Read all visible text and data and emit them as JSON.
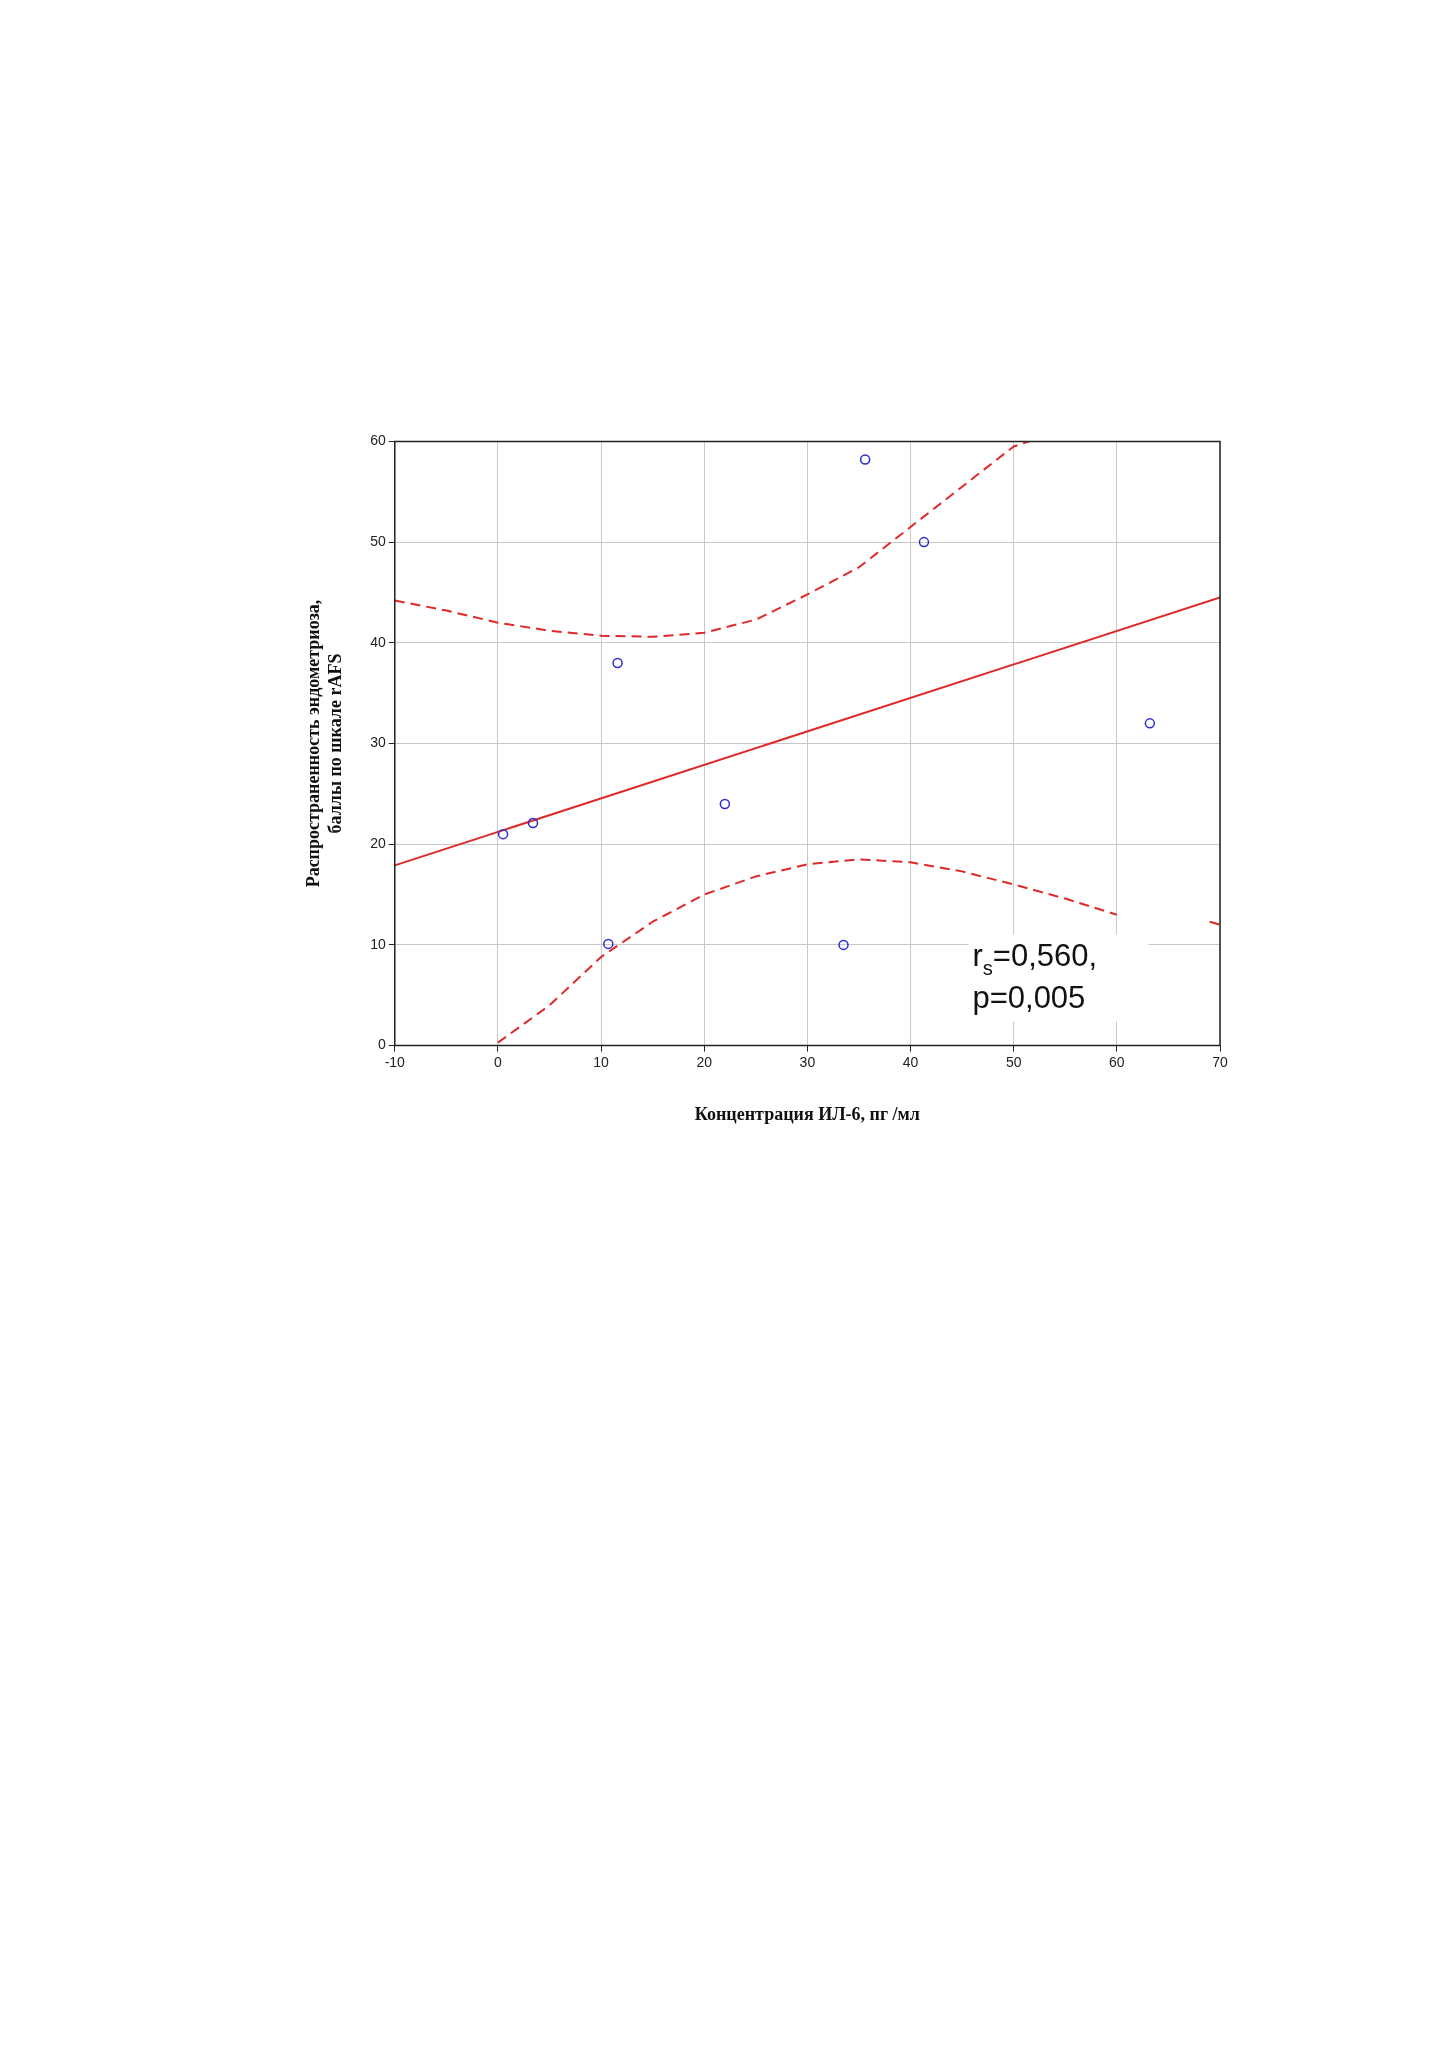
{
  "chart_data": {
    "type": "scatter",
    "xlabel": "Концентрация ИЛ-6, пг /мл",
    "ylabel": "Распространенность эндометриоза,\nбаллы по шкале rAFS",
    "xlim": [
      -10,
      70
    ],
    "xticks": [
      -10,
      0,
      10,
      20,
      30,
      40,
      50,
      60,
      70
    ],
    "ylim": [
      0,
      60
    ],
    "yticks": [
      0,
      10,
      20,
      30,
      40,
      50,
      60
    ],
    "grid": true,
    "annotations": [
      "r$_{s}$=0,560,",
      "p=0,005"
    ],
    "series": [
      {
        "type": "scatter",
        "color": "#2b2bd0",
        "marker": "circle",
        "x": [
          0.5,
          3.4,
          10.7,
          11.6,
          22,
          33.5,
          35.6,
          41.3,
          63.2
        ],
        "values": [
          21,
          22.1,
          10.1,
          38,
          24,
          10,
          58.2,
          50,
          32
        ]
      },
      {
        "type": "line",
        "color": "#e02828",
        "line_style": "solid",
        "marker": "none",
        "x": [
          -10,
          70
        ],
        "values": [
          17.9,
          44.5
        ]
      },
      {
        "type": "line",
        "color": "#e02828",
        "line_style": "dashed",
        "marker": "none",
        "x": [
          -10,
          -5,
          0,
          5,
          10,
          15,
          20,
          25,
          30,
          35,
          40,
          45,
          50,
          51.5
        ],
        "values": [
          44.2,
          43.2,
          42,
          41.2,
          40.7,
          40.6,
          41,
          42.3,
          44.8,
          47.5,
          51.5,
          55.5,
          59.5,
          60
        ]
      },
      {
        "type": "line",
        "color": "#e02828",
        "line_style": "dashed",
        "marker": "none",
        "x": [
          0,
          5,
          10,
          15,
          20,
          25,
          30,
          35,
          40,
          45,
          50,
          55,
          60,
          65,
          69,
          70
        ],
        "values": [
          0.3,
          4,
          8.8,
          12.3,
          15,
          16.8,
          18,
          18.5,
          18.2,
          17.3,
          16,
          14.6,
          13,
          null,
          12.3,
          12
        ]
      }
    ]
  }
}
